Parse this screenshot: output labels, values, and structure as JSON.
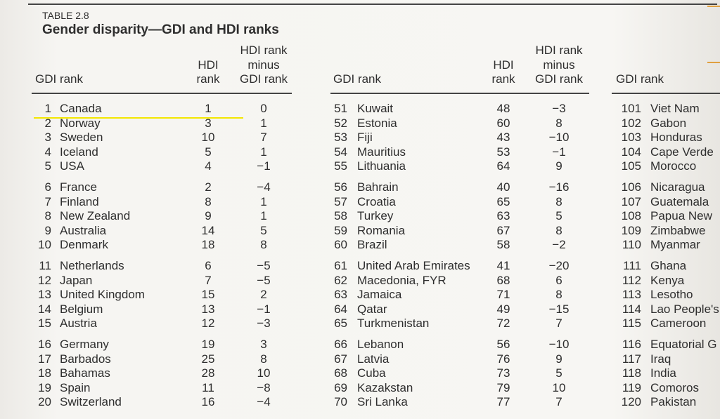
{
  "table": {
    "label": "TABLE 2.8",
    "title": "Gender disparity—GDI and HDI ranks",
    "panels": [
      {
        "headers": {
          "gdi": [
            "GDI rank"
          ],
          "hdi": [
            "HDI",
            "rank"
          ],
          "diff": [
            "HDI rank",
            "minus",
            "GDI rank"
          ]
        },
        "rows": [
          [
            "1",
            "Canada",
            "1",
            "0"
          ],
          [
            "2",
            "Norway",
            "3",
            "1"
          ],
          [
            "3",
            "Sweden",
            "10",
            "7"
          ],
          [
            "4",
            "Iceland",
            "5",
            "1"
          ],
          [
            "5",
            "USA",
            "4",
            "−1"
          ],
          [
            "6",
            "France",
            "2",
            "−4"
          ],
          [
            "7",
            "Finland",
            "8",
            "1"
          ],
          [
            "8",
            "New Zealand",
            "9",
            "1"
          ],
          [
            "9",
            "Australia",
            "14",
            "5"
          ],
          [
            "10",
            "Denmark",
            "18",
            "8"
          ],
          [
            "11",
            "Netherlands",
            "6",
            "−5"
          ],
          [
            "12",
            "Japan",
            "7",
            "−5"
          ],
          [
            "13",
            "United Kingdom",
            "15",
            "2"
          ],
          [
            "14",
            "Belgium",
            "13",
            "−1"
          ],
          [
            "15",
            "Austria",
            "12",
            "−3"
          ],
          [
            "16",
            "Germany",
            "19",
            "3"
          ],
          [
            "17",
            "Barbados",
            "25",
            "8"
          ],
          [
            "18",
            "Bahamas",
            "28",
            "10"
          ],
          [
            "19",
            "Spain",
            "11",
            "−8"
          ],
          [
            "20",
            "Switzerland",
            "16",
            "−4"
          ]
        ]
      },
      {
        "headers": {
          "gdi": [
            "GDI rank"
          ],
          "hdi": [
            "HDI",
            "rank"
          ],
          "diff": [
            "HDI rank",
            "minus",
            "GDI rank"
          ]
        },
        "rows": [
          [
            "51",
            "Kuwait",
            "48",
            "−3"
          ],
          [
            "52",
            "Estonia",
            "60",
            "8"
          ],
          [
            "53",
            "Fiji",
            "43",
            "−10"
          ],
          [
            "54",
            "Mauritius",
            "53",
            "−1"
          ],
          [
            "55",
            "Lithuania",
            "64",
            "9"
          ],
          [
            "56",
            "Bahrain",
            "40",
            "−16"
          ],
          [
            "57",
            "Croatia",
            "65",
            "8"
          ],
          [
            "58",
            "Turkey",
            "63",
            "5"
          ],
          [
            "59",
            "Romania",
            "67",
            "8"
          ],
          [
            "60",
            "Brazil",
            "58",
            "−2"
          ],
          [
            "61",
            "United Arab Emirates",
            "41",
            "−20"
          ],
          [
            "62",
            "Macedonia, FYR",
            "68",
            "6"
          ],
          [
            "63",
            "Jamaica",
            "71",
            "8"
          ],
          [
            "64",
            "Qatar",
            "49",
            "−15"
          ],
          [
            "65",
            "Turkmenistan",
            "72",
            "7"
          ],
          [
            "66",
            "Lebanon",
            "56",
            "−10"
          ],
          [
            "67",
            "Latvia",
            "76",
            "9"
          ],
          [
            "68",
            "Cuba",
            "73",
            "5"
          ],
          [
            "69",
            "Kazakstan",
            "79",
            "10"
          ],
          [
            "70",
            "Sri Lanka",
            "77",
            "7"
          ]
        ]
      },
      {
        "headers": {
          "gdi": [
            "GDI rank"
          ]
        },
        "rows": [
          [
            "101",
            "Viet Nam"
          ],
          [
            "102",
            "Gabon"
          ],
          [
            "103",
            "Honduras"
          ],
          [
            "104",
            "Cape Verde"
          ],
          [
            "105",
            "Morocco"
          ],
          [
            "106",
            "Nicaragua"
          ],
          [
            "107",
            "Guatemala"
          ],
          [
            "108",
            "Papua New"
          ],
          [
            "109",
            "Zimbabwe"
          ],
          [
            "110",
            "Myanmar"
          ],
          [
            "111",
            "Ghana"
          ],
          [
            "112",
            "Kenya"
          ],
          [
            "113",
            "Lesotho"
          ],
          [
            "114",
            "Lao People's"
          ],
          [
            "115",
            "Cameroon"
          ],
          [
            "116",
            "Equatorial G"
          ],
          [
            "117",
            "Iraq"
          ],
          [
            "118",
            "India"
          ],
          [
            "119",
            "Comoros"
          ],
          [
            "120",
            "Pakistan"
          ]
        ]
      }
    ]
  }
}
